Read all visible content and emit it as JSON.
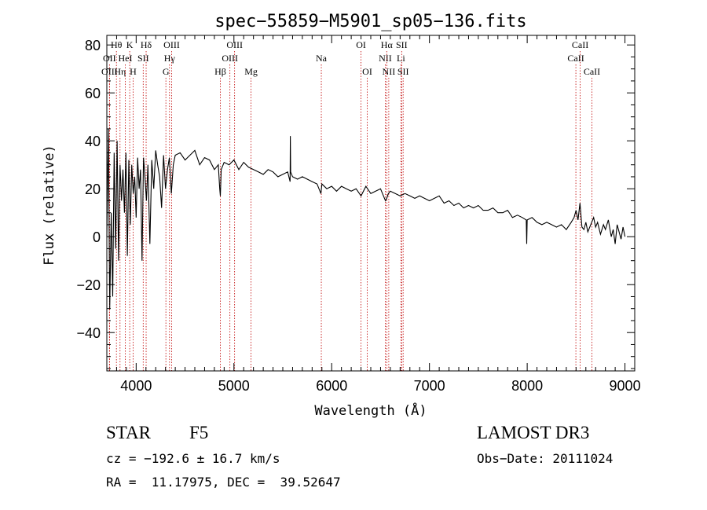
{
  "chart_data": {
    "type": "line",
    "title": "spec−55859−M5901_sp05−136.fits",
    "xlabel": "Wavelength (Å)",
    "ylabel": "Flux (relative)",
    "xlim": [
      3700,
      9100
    ],
    "ylim": [
      -56,
      84
    ],
    "x_ticks": [
      4000,
      5000,
      6000,
      7000,
      8000,
      9000
    ],
    "x_tick_labels": [
      "4000",
      "5000",
      "6000",
      "7000",
      "8000",
      "9000"
    ],
    "y_ticks": [
      -40,
      -20,
      0,
      20,
      40,
      60,
      80
    ],
    "y_tick_labels": [
      "−40",
      "−20",
      "0",
      "20",
      "40",
      "60",
      "80"
    ],
    "series": [
      {
        "name": "flux",
        "x": [
          3700,
          3715,
          3730,
          3745,
          3760,
          3775,
          3790,
          3805,
          3820,
          3835,
          3850,
          3865,
          3880,
          3895,
          3910,
          3925,
          3940,
          3955,
          3970,
          3985,
          4000,
          4015,
          4030,
          4045,
          4060,
          4075,
          4090,
          4105,
          4120,
          4140,
          4160,
          4180,
          4200,
          4220,
          4240,
          4260,
          4280,
          4300,
          4320,
          4340,
          4360,
          4380,
          4400,
          4450,
          4500,
          4550,
          4600,
          4650,
          4700,
          4750,
          4800,
          4840,
          4855,
          4861,
          4870,
          4900,
          4950,
          5000,
          5050,
          5100,
          5150,
          5200,
          5250,
          5300,
          5350,
          5400,
          5450,
          5500,
          5550,
          5575,
          5577,
          5580,
          5600,
          5650,
          5700,
          5750,
          5800,
          5850,
          5890,
          5900,
          5950,
          6000,
          6050,
          6100,
          6150,
          6200,
          6250,
          6300,
          6350,
          6400,
          6450,
          6500,
          6550,
          6563,
          6580,
          6600,
          6650,
          6700,
          6750,
          6800,
          6850,
          6900,
          6950,
          7000,
          7050,
          7100,
          7150,
          7200,
          7250,
          7300,
          7350,
          7400,
          7450,
          7500,
          7550,
          7600,
          7650,
          7700,
          7750,
          7800,
          7850,
          7900,
          7950,
          7990,
          7995,
          8000,
          8050,
          8100,
          8150,
          8200,
          8250,
          8300,
          8350,
          8400,
          8450,
          8480,
          8500,
          8520,
          8540,
          8560,
          8580,
          8600,
          8620,
          8650,
          8680,
          8700,
          8720,
          8750,
          8780,
          8800,
          8830,
          8860,
          8880,
          8900,
          8920,
          8940,
          8960,
          8980,
          9000
        ],
        "y": [
          0,
          45,
          -30,
          10,
          -25,
          35,
          -5,
          40,
          -10,
          30,
          15,
          28,
          10,
          35,
          -8,
          32,
          5,
          30,
          18,
          25,
          8,
          33,
          20,
          28,
          -10,
          33,
          25,
          15,
          30,
          -3,
          32,
          20,
          36,
          30,
          25,
          12,
          34,
          20,
          28,
          33,
          18,
          30,
          34,
          35,
          32,
          34,
          36,
          30,
          33,
          32,
          28,
          30,
          20,
          17,
          28,
          31,
          30,
          32,
          28,
          31,
          29,
          28,
          27,
          26,
          28,
          27,
          25,
          26,
          27,
          23,
          42,
          27,
          25,
          24,
          25,
          24,
          23,
          22,
          18,
          22,
          20,
          21,
          19,
          21,
          20,
          19,
          20,
          17,
          21,
          18,
          19,
          20,
          15,
          16,
          18,
          19,
          18,
          17,
          18,
          17,
          16,
          17,
          16,
          15,
          16,
          17,
          14,
          15,
          13,
          14,
          12,
          13,
          12,
          13,
          11,
          11,
          12,
          10,
          10,
          11,
          8,
          9,
          8,
          7,
          -3,
          7,
          8,
          6,
          5,
          6,
          5,
          4,
          5,
          3,
          6,
          8,
          11,
          7,
          14,
          4,
          3,
          6,
          2,
          5,
          8,
          4,
          6,
          1,
          5,
          3,
          7,
          0,
          3,
          -3,
          5,
          2,
          -1,
          4,
          0
        ]
      }
    ],
    "line_annotations": [
      {
        "label": "Hθ",
        "x": 3798,
        "row": 1
      },
      {
        "label": "OII",
        "x": 3727,
        "row": 2
      },
      {
        "label": "OIII",
        "x": 3727,
        "row": 3
      },
      {
        "label": "Hη",
        "x": 3835,
        "row": 3
      },
      {
        "label": "HeI",
        "x": 3889,
        "row": 2
      },
      {
        "label": "K",
        "x": 3934,
        "row": 1
      },
      {
        "label": "H",
        "x": 3969,
        "row": 3
      },
      {
        "label": "SII",
        "x": 4072,
        "row": 2
      },
      {
        "label": "Hδ",
        "x": 4102,
        "row": 1
      },
      {
        "label": "G",
        "x": 4304,
        "row": 3
      },
      {
        "label": "Hγ",
        "x": 4341,
        "row": 2
      },
      {
        "label": "OIII",
        "x": 4363,
        "row": 1
      },
      {
        "label": "Hβ",
        "x": 4861,
        "row": 3
      },
      {
        "label": "OIII",
        "x": 4959,
        "row": 2
      },
      {
        "label": "OIII",
        "x": 5007,
        "row": 1
      },
      {
        "label": "Mg",
        "x": 5175,
        "row": 3
      },
      {
        "label": "Na",
        "x": 5894,
        "row": 2
      },
      {
        "label": "OI",
        "x": 6300,
        "row": 1
      },
      {
        "label": "OI",
        "x": 6364,
        "row": 3
      },
      {
        "label": "NII",
        "x": 6548,
        "row": 2
      },
      {
        "label": "Hα",
        "x": 6563,
        "row": 1
      },
      {
        "label": "NII",
        "x": 6584,
        "row": 3
      },
      {
        "label": "Li",
        "x": 6708,
        "row": 2
      },
      {
        "label": "SII",
        "x": 6716,
        "row": 1
      },
      {
        "label": "SII",
        "x": 6731,
        "row": 3
      },
      {
        "label": "CaII",
        "x": 8498,
        "row": 2
      },
      {
        "label": "CaII",
        "x": 8542,
        "row": 1
      },
      {
        "label": "CaII",
        "x": 8662,
        "row": 3
      }
    ]
  },
  "info": {
    "class_label": "STAR",
    "subclass_label": "F5",
    "survey": "LAMOST DR3",
    "redshift_text": "cz = −192.6 ± 16.7 km/s",
    "obs_date": "Obs−Date: 20111024",
    "coords": "RA =  11.17975, DEC =  39.52647"
  }
}
